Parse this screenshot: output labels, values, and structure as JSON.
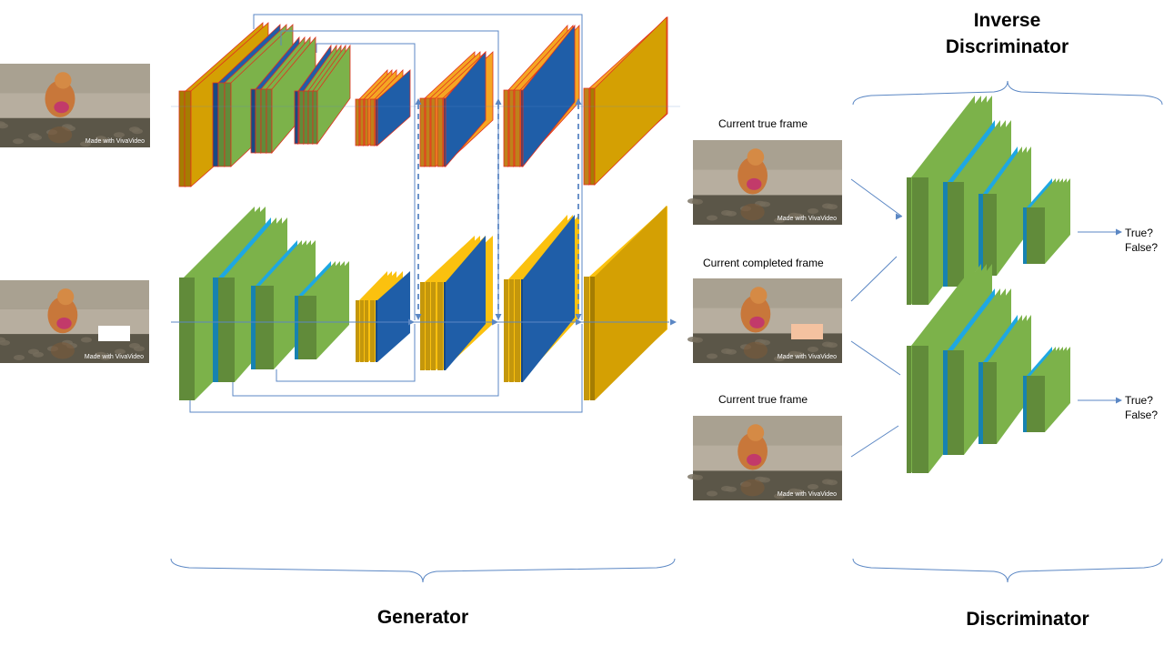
{
  "colors": {
    "green": "#7cb24a",
    "blue": "#1f5ea8",
    "cyan": "#1ea7e2",
    "orange": "#f5a623",
    "gold": "#d4a003",
    "yellow": "#fbc10f",
    "red_edge": "#e0301e",
    "arrow": "#5b87c4"
  },
  "labels": {
    "inverse_discriminator": "Inverse\nDiscriminator",
    "generator": "Generator",
    "discriminator": "Discriminator",
    "current_true_frame_top": "Current true frame",
    "current_completed_frame": "Current completed frame",
    "current_true_frame_bottom": "Current true frame",
    "output_top": "True?\nFalse?",
    "output_bottom": "True?\nFalse?"
  },
  "watermark": "Made with VivaVideo"
}
